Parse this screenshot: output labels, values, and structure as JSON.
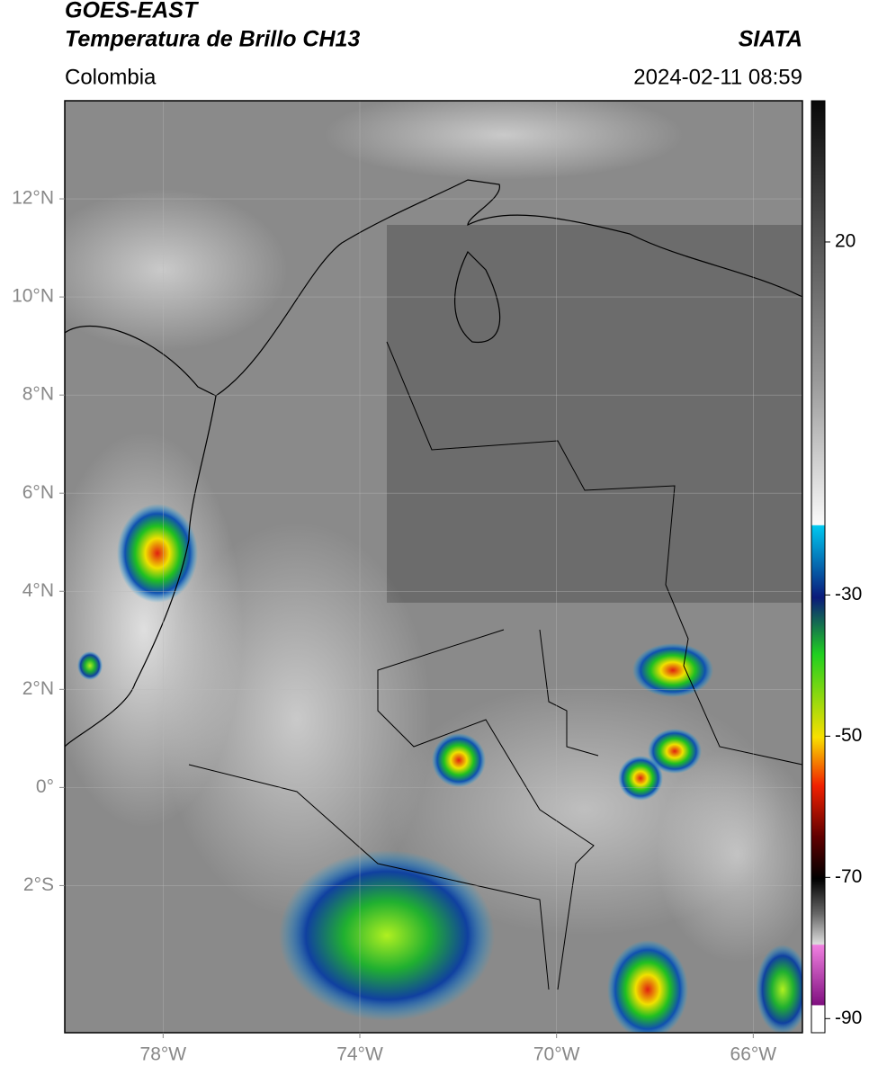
{
  "header": {
    "title": "GOES-EAST",
    "subtitle": "Temperatura de Brillo CH13",
    "source": "SIATA",
    "region": "Colombia",
    "datetime": "2024-02-11 08:59"
  },
  "map": {
    "xlim": [
      -80,
      -65
    ],
    "ylim": [
      -5,
      14
    ],
    "xticks": [
      {
        "value": -78,
        "label": "78°W"
      },
      {
        "value": -74,
        "label": "74°W"
      },
      {
        "value": -70,
        "label": "70°W"
      },
      {
        "value": -66,
        "label": "66°W"
      }
    ],
    "yticks": [
      {
        "value": 12,
        "label": "12°N"
      },
      {
        "value": 10,
        "label": "10°N"
      },
      {
        "value": 8,
        "label": "8°N"
      },
      {
        "value": 6,
        "label": "6°N"
      },
      {
        "value": 4,
        "label": "4°N"
      },
      {
        "value": 2,
        "label": "2°N"
      },
      {
        "value": 0,
        "label": "0°"
      },
      {
        "value": -2,
        "label": "2°S"
      }
    ],
    "grid": true
  },
  "colorbar": {
    "lim": [
      -92,
      40
    ],
    "ticks": [
      20,
      -30,
      -50,
      -70,
      -90
    ]
  }
}
